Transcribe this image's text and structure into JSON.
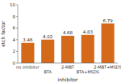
{
  "chart_data": {
    "type": "bar",
    "categories": [
      "no inhibitor",
      "BTA",
      "2-MBT",
      "BTA+MSDS",
      "2-MBT+MSDS"
    ],
    "values": [
      3.46,
      4.02,
      4.68,
      4.83,
      6.79
    ],
    "color": "#D4691A",
    "xlabel": "inhibitor",
    "ylabel": "etch factor",
    "ylim": [
      0,
      10
    ],
    "yticks": [
      0,
      2,
      4,
      6,
      8,
      10
    ],
    "data_labels": true,
    "grid": false
  }
}
